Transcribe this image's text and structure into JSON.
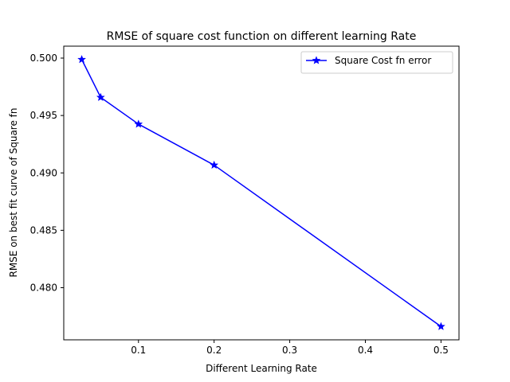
{
  "chart_data": {
    "type": "line",
    "title": "RMSE of square cost function on different learning Rate",
    "xlabel": "Different Learning Rate",
    "ylabel": "RMSE on best fit curve of Square fn",
    "xlim": [
      0.0012,
      0.5238
    ],
    "ylim": [
      0.47546,
      0.50104
    ],
    "x_ticks": [
      0.1,
      0.2,
      0.3,
      0.4,
      0.5
    ],
    "x_tick_labels": [
      "0.1",
      "0.2",
      "0.3",
      "0.4",
      "0.5"
    ],
    "y_ticks": [
      0.48,
      0.485,
      0.49,
      0.495,
      0.5
    ],
    "y_tick_labels": [
      "0.480",
      "0.485",
      "0.490",
      "0.495",
      "0.500"
    ],
    "grid": false,
    "legend_position": "top-right",
    "series": [
      {
        "name": "Square Cost fn error",
        "color": "#0000ff",
        "marker": "star",
        "x": [
          0.025,
          0.05,
          0.1,
          0.2,
          0.5
        ],
        "y": [
          0.49988,
          0.49658,
          0.49425,
          0.49068,
          0.47662
        ]
      }
    ]
  }
}
